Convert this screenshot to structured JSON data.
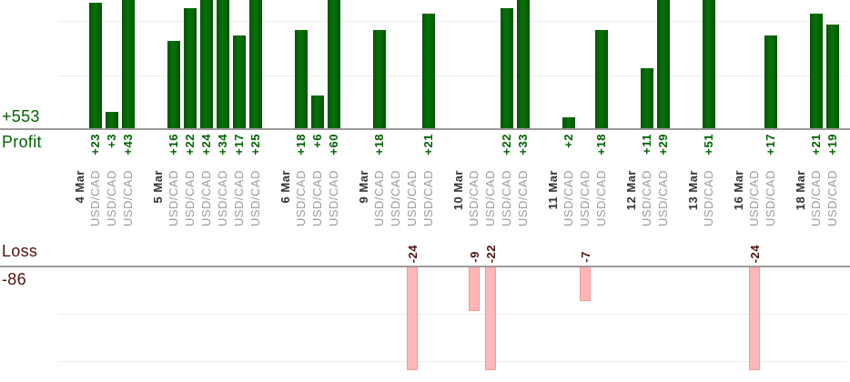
{
  "labels": {
    "profit_total": "+553",
    "profit_axis": "Profit",
    "loss_axis": "Loss",
    "loss_total": "-86"
  },
  "colors": {
    "profit_bar": "#066206",
    "profit_text": "#006400",
    "loss_bar_fill": "#ffb6b6",
    "loss_bar_border": "#f19b9b",
    "loss_text": "#4f1212",
    "date_text": "#333333",
    "pair_text": "#9b9b9b",
    "axis_line": "#9a9a9a",
    "gridline": "#ededed"
  },
  "chart_data": {
    "type": "bar",
    "title": "",
    "xlabel": "",
    "instrument_tick_label": "USD/CAD",
    "profit_panel": {
      "axis_label": "Profit",
      "total": 553,
      "total_label": "+553",
      "gridline_interval": 10,
      "visible_value_range": [
        0,
        23.5
      ],
      "note": "bars above ~23.5 are clipped by top edge"
    },
    "loss_panel": {
      "axis_label": "Loss",
      "total": -86,
      "total_label": "-86",
      "gridline_interval": 10,
      "visible_value_range": [
        -21.5,
        0
      ],
      "note": "bars below ~-21.5 are clipped by panel bottom"
    },
    "groups": [
      {
        "date": "4 Mar",
        "trades": [
          {
            "pair": "USD/CAD",
            "value": 23,
            "label": "+23"
          },
          {
            "pair": "USD/CAD",
            "value": 3,
            "label": "+3"
          },
          {
            "pair": "USD/CAD",
            "value": 43,
            "label": "+43"
          }
        ]
      },
      {
        "date": "5 Mar",
        "trades": [
          {
            "pair": "USD/CAD",
            "value": 16,
            "label": "+16"
          },
          {
            "pair": "USD/CAD",
            "value": 22,
            "label": "+22"
          },
          {
            "pair": "USD/CAD",
            "value": 24,
            "label": "+24"
          },
          {
            "pair": "USD/CAD",
            "value": 34,
            "label": "+34"
          },
          {
            "pair": "USD/CAD",
            "value": 17,
            "label": "+17"
          },
          {
            "pair": "USD/CAD",
            "value": 25,
            "label": "+25"
          }
        ]
      },
      {
        "date": "6 Mar",
        "trades": [
          {
            "pair": "USD/CAD",
            "value": 18,
            "label": "+18"
          },
          {
            "pair": "USD/CAD",
            "value": 6,
            "label": "+6"
          },
          {
            "pair": "USD/CAD",
            "value": 60,
            "label": "+60"
          }
        ]
      },
      {
        "date": "9 Mar",
        "trades": [
          {
            "pair": "USD/CAD",
            "value": 18,
            "label": "+18"
          },
          {
            "pair": "USD/CAD",
            "value": 0,
            "label": ""
          },
          {
            "pair": "USD/CAD",
            "value": -24,
            "label": "-24"
          },
          {
            "pair": "USD/CAD",
            "value": 21,
            "label": "+21"
          }
        ]
      },
      {
        "date": "10 Mar",
        "trades": [
          {
            "pair": "USD/CAD",
            "value": -9,
            "label": "-9"
          },
          {
            "pair": "USD/CAD",
            "value": -22,
            "label": "-22"
          },
          {
            "pair": "USD/CAD",
            "value": 22,
            "label": "+22"
          },
          {
            "pair": "USD/CAD",
            "value": 33,
            "label": "+33"
          }
        ]
      },
      {
        "date": "11 Mar",
        "trades": [
          {
            "pair": "USD/CAD",
            "value": 2,
            "label": "+2"
          },
          {
            "pair": "USD/CAD",
            "value": -7,
            "label": "-7"
          },
          {
            "pair": "USD/CAD",
            "value": 18,
            "label": "+18"
          }
        ]
      },
      {
        "date": "12 Mar",
        "trades": [
          {
            "pair": "USD/CAD",
            "value": 11,
            "label": "+11"
          },
          {
            "pair": "USD/CAD",
            "value": 29,
            "label": "+29"
          }
        ]
      },
      {
        "date": "13 Mar",
        "trades": [
          {
            "pair": "USD/CAD",
            "value": 51,
            "label": "+51"
          }
        ]
      },
      {
        "date": "16 Mar",
        "trades": [
          {
            "pair": "USD/CAD",
            "value": -24,
            "label": "-24"
          },
          {
            "pair": "USD/CAD",
            "value": 17,
            "label": "+17"
          }
        ]
      },
      {
        "date": "18 Mar",
        "trades": [
          {
            "pair": "USD/CAD",
            "value": 21,
            "label": "+21"
          },
          {
            "pair": "USD/CAD",
            "value": 19,
            "label": "+19"
          }
        ]
      }
    ]
  }
}
